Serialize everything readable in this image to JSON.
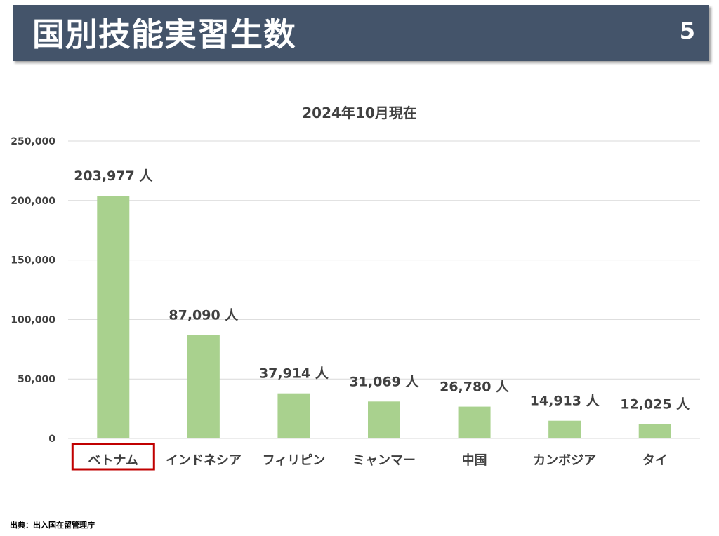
{
  "header": {
    "title": "国別技能実習生数",
    "page_number": "5"
  },
  "source_note": "出典：出入国在留管理庁",
  "colors": {
    "header_bg": "#44546a",
    "bar": "#a9d18e",
    "highlight_box": "#c00000",
    "gridline": "#d9d9d9",
    "text": "#404040"
  },
  "chart_data": {
    "type": "bar",
    "title": "2024年10月現在",
    "categories": [
      "ベトナム",
      "インドネシア",
      "フィリピン",
      "ミャンマー",
      "中国",
      "カンボジア",
      "タイ"
    ],
    "values": [
      203977,
      87090,
      37914,
      31069,
      26780,
      14913,
      12025
    ],
    "data_labels": [
      "203,977 人",
      "87,090 人",
      "37,914 人",
      "31,069 人",
      "26,780 人",
      "14,913 人",
      "12,025 人"
    ],
    "yticks": [
      "0",
      "50,000",
      "100,000",
      "150,000",
      "200,000",
      "250,000"
    ],
    "ylim": [
      0,
      250000
    ],
    "grid": true,
    "highlighted_category": "ベトナム"
  }
}
